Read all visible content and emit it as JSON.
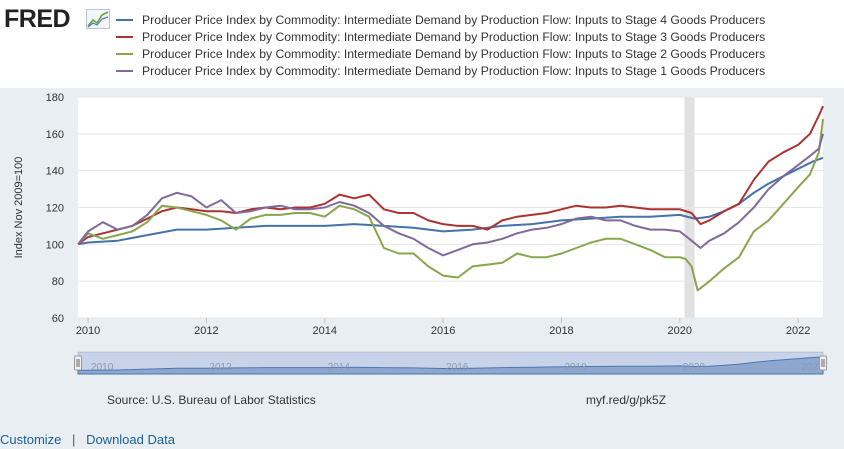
{
  "logo": {
    "text": "FRED"
  },
  "legend": [
    {
      "label": "Producer Price Index by Commodity: Intermediate Demand by Production Flow: Inputs to Stage 4 Goods Producers",
      "color": "#4572a7"
    },
    {
      "label": "Producer Price Index by Commodity: Intermediate Demand by Production Flow: Inputs to Stage 3 Goods Producers",
      "color": "#aa3333"
    },
    {
      "label": "Producer Price Index by Commodity: Intermediate Demand by Production Flow: Inputs to Stage 2 Goods Producers",
      "color": "#89a54e"
    },
    {
      "label": "Producer Price Index by Commodity: Intermediate Demand by Production Flow: Inputs to Stage 1 Goods Producers",
      "color": "#80699b"
    }
  ],
  "footer": {
    "source": "Source: U.S. Bureau of Labor Statistics",
    "shortlink": "myf.red/g/pk5Z",
    "customize": "Customize",
    "separator": "|",
    "download": "Download Data"
  },
  "chart_data": {
    "type": "line",
    "title": "",
    "xlabel": "",
    "ylabel": "Index Nov 2009=100",
    "xlim": [
      2009.83,
      2022.42
    ],
    "ylim": [
      60,
      180
    ],
    "yticks": [
      60,
      80,
      100,
      120,
      140,
      160,
      180
    ],
    "xticks": [
      2010,
      2012,
      2014,
      2016,
      2018,
      2020,
      2022
    ],
    "recession": [
      2020.08,
      2020.25
    ],
    "navigator_labels": [
      "2010",
      "2012",
      "2014",
      "2016",
      "2018",
      "2020",
      "2022"
    ],
    "series": [
      {
        "name": "Inputs to Stage 4 Goods Producers",
        "color": "#4572a7",
        "x": [
          2009.83,
          2010.0,
          2010.5,
          2011.0,
          2011.5,
          2012.0,
          2012.5,
          2013.0,
          2013.5,
          2014.0,
          2014.5,
          2015.0,
          2015.5,
          2016.0,
          2016.5,
          2017.0,
          2017.5,
          2018.0,
          2018.5,
          2019.0,
          2019.5,
          2020.0,
          2020.25,
          2020.5,
          2020.75,
          2021.0,
          2021.25,
          2021.5,
          2021.75,
          2022.0,
          2022.25,
          2022.42
        ],
        "y": [
          100,
          101,
          102,
          105,
          108,
          108,
          109,
          110,
          110,
          110,
          111,
          110,
          109,
          107,
          108,
          110,
          111,
          113,
          114,
          115,
          115,
          116,
          114,
          115,
          118,
          122,
          128,
          133,
          137,
          141,
          145,
          147
        ]
      },
      {
        "name": "Inputs to Stage 3 Goods Producers",
        "color": "#aa3333",
        "x": [
          2009.83,
          2010.0,
          2010.25,
          2010.5,
          2010.75,
          2011.0,
          2011.25,
          2011.5,
          2011.75,
          2012.0,
          2012.25,
          2012.5,
          2012.75,
          2013.0,
          2013.25,
          2013.5,
          2013.75,
          2014.0,
          2014.25,
          2014.5,
          2014.75,
          2015.0,
          2015.25,
          2015.5,
          2015.75,
          2016.0,
          2016.25,
          2016.5,
          2016.75,
          2017.0,
          2017.25,
          2017.5,
          2017.75,
          2018.0,
          2018.25,
          2018.5,
          2018.75,
          2019.0,
          2019.25,
          2019.5,
          2019.75,
          2020.0,
          2020.2,
          2020.35,
          2020.5,
          2020.75,
          2021.0,
          2021.25,
          2021.5,
          2021.75,
          2022.0,
          2022.2,
          2022.35,
          2022.42
        ],
        "y": [
          100,
          104,
          106,
          108,
          110,
          114,
          118,
          120,
          119,
          118,
          118,
          117,
          119,
          120,
          119,
          120,
          120,
          122,
          127,
          125,
          127,
          119,
          117,
          117,
          113,
          111,
          110,
          110,
          108,
          113,
          115,
          116,
          117,
          119,
          121,
          120,
          120,
          121,
          120,
          119,
          119,
          119,
          117,
          111,
          113,
          118,
          122,
          135,
          145,
          150,
          154,
          160,
          170,
          175
        ]
      },
      {
        "name": "Inputs to Stage 2 Goods Producers",
        "color": "#89a54e",
        "x": [
          2009.83,
          2010.0,
          2010.25,
          2010.5,
          2010.75,
          2011.0,
          2011.25,
          2011.5,
          2011.75,
          2012.0,
          2012.25,
          2012.5,
          2012.75,
          2013.0,
          2013.25,
          2013.5,
          2013.75,
          2014.0,
          2014.25,
          2014.5,
          2014.75,
          2015.0,
          2015.25,
          2015.5,
          2015.75,
          2016.0,
          2016.25,
          2016.5,
          2016.75,
          2017.0,
          2017.25,
          2017.5,
          2017.75,
          2018.0,
          2018.25,
          2018.5,
          2018.75,
          2019.0,
          2019.25,
          2019.5,
          2019.75,
          2020.0,
          2020.1,
          2020.2,
          2020.3,
          2020.5,
          2020.75,
          2021.0,
          2021.25,
          2021.5,
          2021.75,
          2022.0,
          2022.2,
          2022.35,
          2022.42
        ],
        "y": [
          100,
          106,
          103,
          105,
          107,
          112,
          121,
          120,
          118,
          116,
          113,
          108,
          114,
          116,
          116,
          117,
          117,
          115,
          121,
          119,
          115,
          98,
          95,
          95,
          88,
          83,
          82,
          88,
          89,
          90,
          95,
          93,
          93,
          95,
          98,
          101,
          103,
          103,
          100,
          97,
          93,
          93,
          92,
          88,
          75,
          80,
          87,
          93,
          107,
          113,
          122,
          131,
          138,
          150,
          168
        ]
      },
      {
        "name": "Inputs to Stage 1 Goods Producers",
        "color": "#80699b",
        "x": [
          2009.83,
          2010.0,
          2010.25,
          2010.5,
          2010.75,
          2011.0,
          2011.25,
          2011.5,
          2011.75,
          2012.0,
          2012.25,
          2012.5,
          2012.75,
          2013.0,
          2013.25,
          2013.5,
          2013.75,
          2014.0,
          2014.25,
          2014.5,
          2014.75,
          2015.0,
          2015.25,
          2015.5,
          2015.75,
          2016.0,
          2016.25,
          2016.5,
          2016.75,
          2017.0,
          2017.25,
          2017.5,
          2017.75,
          2018.0,
          2018.25,
          2018.5,
          2018.75,
          2019.0,
          2019.25,
          2019.5,
          2019.75,
          2020.0,
          2020.2,
          2020.35,
          2020.5,
          2020.75,
          2021.0,
          2021.25,
          2021.5,
          2021.75,
          2022.0,
          2022.2,
          2022.35,
          2022.42
        ],
        "y": [
          100,
          107,
          112,
          108,
          110,
          116,
          125,
          128,
          126,
          120,
          124,
          117,
          118,
          120,
          121,
          119,
          119,
          120,
          123,
          121,
          117,
          110,
          106,
          103,
          98,
          94,
          97,
          100,
          101,
          103,
          106,
          108,
          109,
          111,
          114,
          115,
          113,
          113,
          110,
          108,
          108,
          107,
          102,
          98,
          102,
          106,
          112,
          120,
          130,
          137,
          143,
          148,
          152,
          160
        ]
      }
    ]
  }
}
